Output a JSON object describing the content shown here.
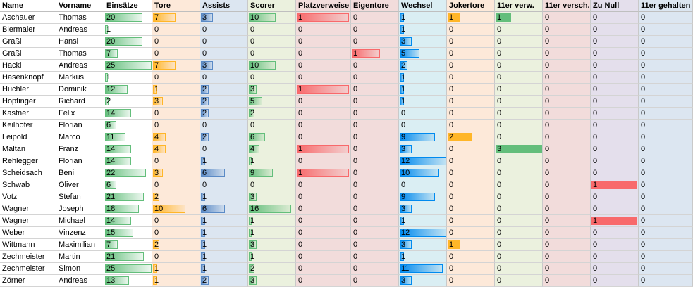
{
  "headers": [
    "Name",
    "Vorname",
    "Einsätze",
    "Tore",
    "Assists",
    "Scorer",
    "Platzverweise",
    "Eigentore",
    "Wechsel",
    "Jokertore",
    "11er verw.",
    "11er versch.",
    "Zu Null",
    "11er gehalten"
  ],
  "column_backgrounds": [
    "#ffffff",
    "#ffffff",
    "#ffffff",
    "#fde9d9",
    "#dce6f1",
    "#ebf1de",
    "#f2dcdb",
    "#f2dcdb",
    "#daeef3",
    "#fde9d9",
    "#ebf1de",
    "#f2dcdb",
    "#e4dfec",
    "#dce6f1"
  ],
  "bar_colors": {
    "Einsätze": "#63be7b",
    "Tore": "#ffb628",
    "Assists": "#5a8ac6",
    "Scorer": "#63be7b",
    "Platzverweise": "#f8696b",
    "Eigentore": "#f8696b",
    "Wechsel": "#008aef",
    "Jokertore": "#ffb628",
    "11er verw.": "#63be7b",
    "11er versch.": "#f8696b",
    "Zu Null": "#f8696b",
    "11er gehalten": "#5a8ac6"
  },
  "bar_styles": {
    "Einsätze": "gradient",
    "Tore": "gradient",
    "Assists": "gradient",
    "Scorer": "gradient",
    "Platzverweise": "gradient",
    "Eigentore": "gradient",
    "Wechsel": "gradient",
    "Jokertore": "solid",
    "11er verw.": "solid",
    "11er versch.": "solid",
    "Zu Null": "solid",
    "11er gehalten": "solid"
  },
  "column_max": {
    "Einsätze": 25,
    "Tore": 10,
    "Assists": 6,
    "Scorer": 16,
    "Platzverweise": 1,
    "Eigentore": 1,
    "Wechsel": 12,
    "Jokertore": 2,
    "11er verw.": 3,
    "11er versch.": 1,
    "Zu Null": 1,
    "11er gehalten": 1
  },
  "rows": [
    [
      "Aschauer",
      "Thomas",
      20,
      7,
      3,
      10,
      1,
      0,
      1,
      1,
      1,
      0,
      0,
      0
    ],
    [
      "Biermaier",
      "Andreas",
      1,
      0,
      0,
      0,
      0,
      0,
      1,
      0,
      0,
      0,
      0,
      0
    ],
    [
      "Graßl",
      "Hansi",
      20,
      0,
      0,
      0,
      0,
      0,
      3,
      0,
      0,
      0,
      0,
      0
    ],
    [
      "Graßl",
      "Thomas",
      7,
      0,
      0,
      0,
      0,
      1,
      5,
      0,
      0,
      0,
      0,
      0
    ],
    [
      "Hackl",
      "Andreas",
      25,
      7,
      3,
      10,
      0,
      0,
      2,
      0,
      0,
      0,
      0,
      0
    ],
    [
      "Hasenknopf",
      "Markus",
      1,
      0,
      0,
      0,
      0,
      0,
      1,
      0,
      0,
      0,
      0,
      0
    ],
    [
      "Huchler",
      "Dominik",
      12,
      1,
      2,
      3,
      1,
      0,
      1,
      0,
      0,
      0,
      0,
      0
    ],
    [
      "Hopfinger",
      "Richard",
      2,
      3,
      2,
      5,
      0,
      0,
      1,
      0,
      0,
      0,
      0,
      0
    ],
    [
      "Kastner",
      "Felix",
      14,
      0,
      2,
      2,
      0,
      0,
      0,
      0,
      0,
      0,
      0,
      0
    ],
    [
      "Keilhofer",
      "Florian",
      6,
      0,
      0,
      0,
      0,
      0,
      0,
      0,
      0,
      0,
      0,
      0
    ],
    [
      "Leipold",
      "Marco",
      11,
      4,
      2,
      6,
      0,
      0,
      9,
      2,
      0,
      0,
      0,
      0
    ],
    [
      "Maltan",
      "Franz",
      14,
      4,
      0,
      4,
      1,
      0,
      3,
      0,
      3,
      0,
      0,
      0
    ],
    [
      "Rehlegger",
      "Florian",
      14,
      0,
      1,
      1,
      0,
      0,
      12,
      0,
      0,
      0,
      0,
      0
    ],
    [
      "Scheidsach",
      "Beni",
      22,
      3,
      6,
      9,
      1,
      0,
      10,
      0,
      0,
      0,
      0,
      0
    ],
    [
      "Schwab",
      "Oliver",
      6,
      0,
      0,
      0,
      0,
      0,
      0,
      0,
      0,
      0,
      1,
      0
    ],
    [
      "Votz",
      "Stefan",
      21,
      2,
      1,
      3,
      0,
      0,
      9,
      0,
      0,
      0,
      0,
      0
    ],
    [
      "Wagner",
      "Joseph",
      18,
      10,
      6,
      16,
      0,
      0,
      3,
      0,
      0,
      0,
      0,
      0
    ],
    [
      "Wagner",
      "Michael",
      14,
      0,
      1,
      1,
      0,
      0,
      1,
      0,
      0,
      0,
      1,
      0
    ],
    [
      "Weber",
      "Vinzenz",
      15,
      0,
      1,
      1,
      0,
      0,
      12,
      0,
      0,
      0,
      0,
      0
    ],
    [
      "Wittmann",
      "Maximilian",
      7,
      2,
      1,
      3,
      0,
      0,
      3,
      1,
      0,
      0,
      0,
      0
    ],
    [
      "Zechmeister",
      "Martin",
      21,
      0,
      1,
      1,
      0,
      0,
      1,
      0,
      0,
      0,
      0,
      0
    ],
    [
      "Zechmeister",
      "Simon",
      25,
      1,
      1,
      2,
      0,
      0,
      11,
      0,
      0,
      0,
      0,
      0
    ],
    [
      "Zörner",
      "Andreas",
      13,
      1,
      2,
      3,
      0,
      0,
      3,
      0,
      0,
      0,
      0,
      0
    ]
  ]
}
